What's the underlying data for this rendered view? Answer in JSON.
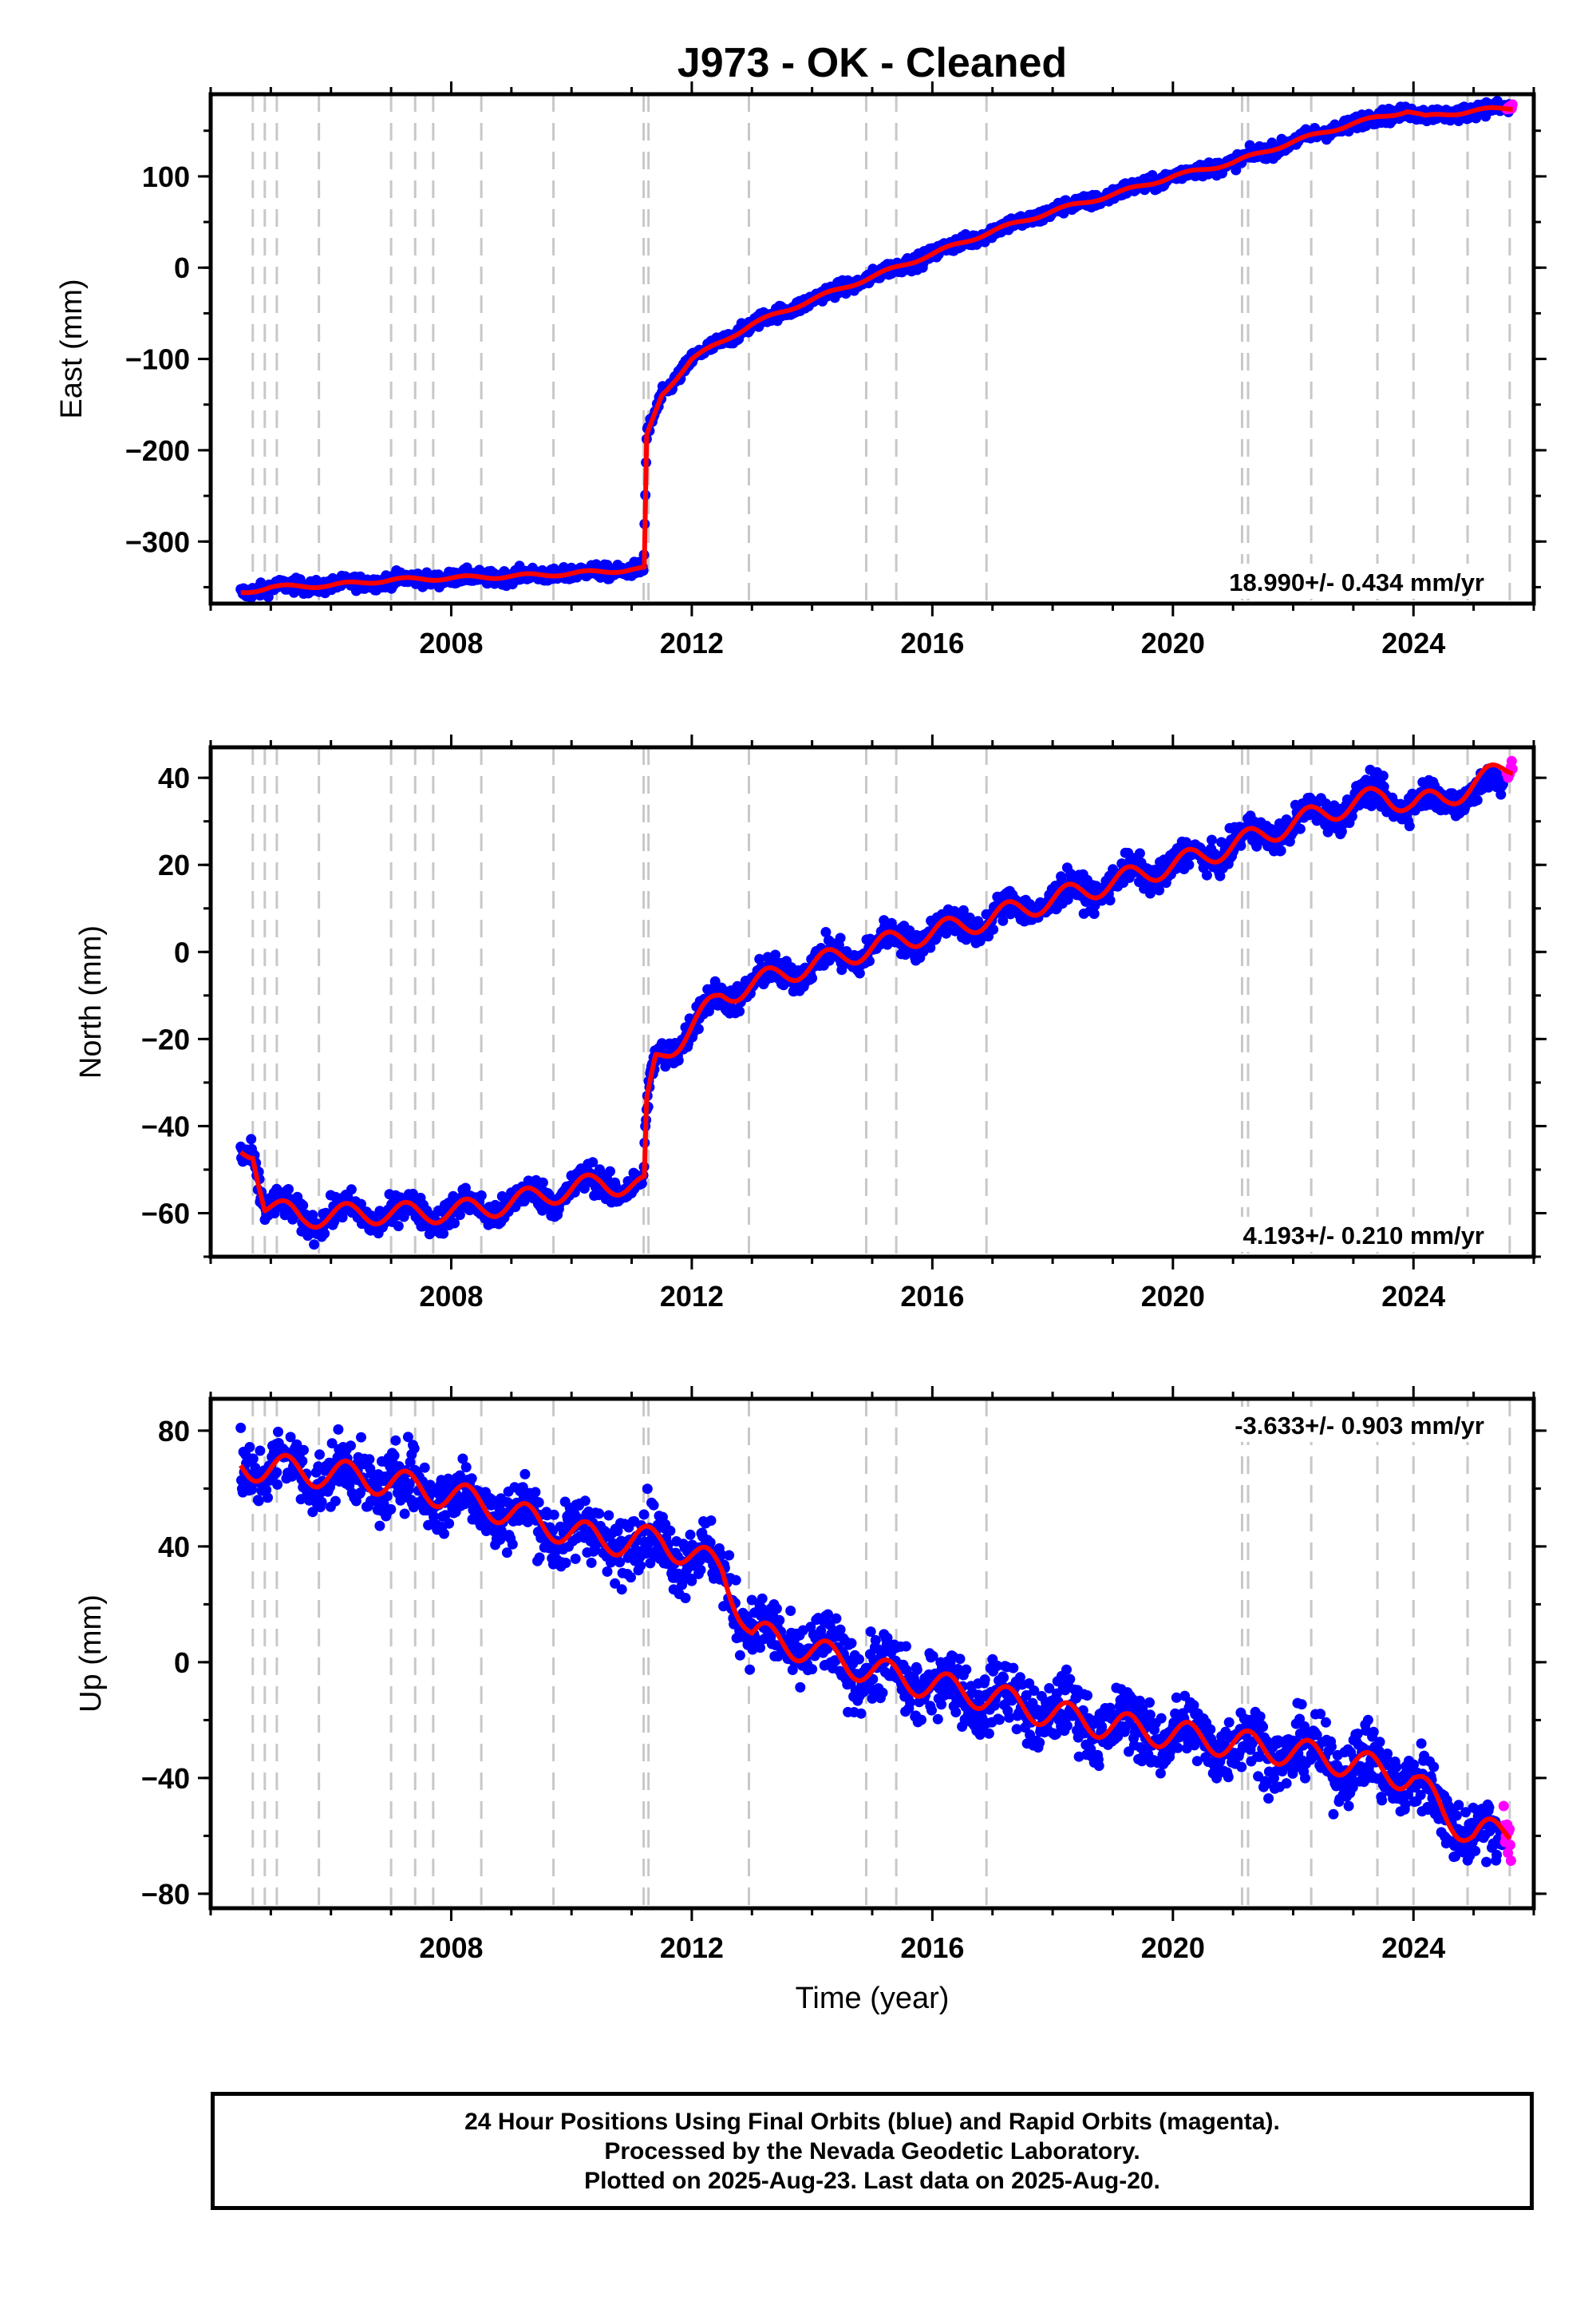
{
  "title": "J973  - OK - Cleaned",
  "xlabel": "Time (year)",
  "colors": {
    "final": "#0000ff",
    "rapid": "#ff00ff",
    "model": "#ff0000",
    "events": "#c8c8c8"
  },
  "event_years": [
    2004.7,
    2004.9,
    2005.1,
    2005.8,
    2007.0,
    2007.4,
    2007.7,
    2008.5,
    2009.7,
    2011.2,
    2011.28,
    2012.95,
    2014.9,
    2015.4,
    2016.9,
    2021.15,
    2021.25,
    2022.3,
    2023.4,
    2024.0,
    2024.9,
    2025.6
  ],
  "footer": {
    "line1": "24 Hour Positions Using Final Orbits (blue) and Rapid Orbits (magenta).",
    "line2": "Processed by the Nevada Geodetic Laboratory.",
    "line3": "Plotted on 2025-Aug-23. Last data on 2025-Aug-20."
  },
  "chart_data": [
    {
      "type": "scatter",
      "component": "East",
      "ylabel": "East (mm)",
      "rate_text": "18.990+/- 0.434 mm/yr",
      "xlim": [
        2004.0,
        2026.0
      ],
      "ylim": [
        -368,
        190
      ],
      "xticks": [
        2008,
        2012,
        2016,
        2020,
        2024
      ],
      "yticks": [
        -300,
        -200,
        -100,
        0,
        100
      ],
      "series": [
        {
          "name": "Final Orbits",
          "x": [
            2004.5,
            2005.0,
            2006.0,
            2007.0,
            2008.0,
            2009.0,
            2010.0,
            2011.2,
            2011.25,
            2011.5,
            2012.0,
            2013.0,
            2014.0,
            2015.0,
            2016.0,
            2017.0,
            2018.0,
            2019.0,
            2020.0,
            2021.0,
            2022.0,
            2023.0,
            2023.9,
            2024.2,
            2025.0,
            2025.6
          ],
          "y": [
            -356,
            -350,
            -348,
            -342,
            -340,
            -338,
            -335,
            -330,
            -185,
            -140,
            -100,
            -62,
            -35,
            -10,
            15,
            40,
            62,
            80,
            100,
            115,
            138,
            158,
            172,
            165,
            172,
            175
          ],
          "noise": 4
        },
        {
          "name": "Rapid Orbits",
          "x": [
            2025.55,
            2025.65
          ],
          "y": [
            174,
            178
          ],
          "noise": 2
        }
      ],
      "model": {
        "x": [
          2004.5,
          2005.0,
          2006.0,
          2007.0,
          2008.0,
          2009.0,
          2010.0,
          2011.2,
          2011.21,
          2011.25,
          2011.5,
          2012.0,
          2013.0,
          2014.0,
          2015.0,
          2016.0,
          2017.0,
          2018.0,
          2019.0,
          2020.0,
          2021.0,
          2022.0,
          2023.0,
          2023.9,
          2024.2,
          2025.0,
          2025.65
        ],
        "y": [
          -356,
          -350,
          -348,
          -342,
          -340,
          -338,
          -335,
          -330,
          -330,
          -185,
          -140,
          -100,
          -62,
          -35,
          -10,
          15,
          40,
          62,
          80,
          100,
          115,
          138,
          158,
          172,
          165,
          172,
          175
        ],
        "seasonal": 2
      }
    },
    {
      "type": "scatter",
      "component": "North",
      "ylabel": "North (mm)",
      "rate_text": "4.193+/- 0.210 mm/yr",
      "xlim": [
        2004.0,
        2026.0
      ],
      "ylim": [
        -70,
        47
      ],
      "xticks": [
        2008,
        2012,
        2016,
        2020,
        2024
      ],
      "yticks": [
        -60,
        -40,
        -20,
        0,
        20,
        40
      ],
      "series": [
        {
          "name": "Final Orbits",
          "x": [
            2004.5,
            2004.7,
            2004.9,
            2005.5,
            2006.5,
            2007.5,
            2008.5,
            2009.5,
            2010.5,
            2011.2,
            2011.25,
            2011.4,
            2011.8,
            2012.5,
            2013.5,
            2014.5,
            2015.5,
            2016.5,
            2017.5,
            2018.5,
            2019.5,
            2020.5,
            2021.5,
            2022.5,
            2023.5,
            2024.0,
            2024.5,
            2025.5
          ],
          "y": [
            -46,
            -45,
            -58,
            -61,
            -60,
            -60,
            -59,
            -56,
            -53,
            -54,
            -36,
            -25,
            -20,
            -10,
            -5,
            -1,
            3,
            6,
            10,
            14,
            18,
            22,
            27,
            32,
            36,
            34,
            35,
            39
          ],
          "noise": 1.8
        },
        {
          "name": "Rapid Orbits",
          "x": [
            2025.55,
            2025.65
          ],
          "y": [
            42,
            44
          ],
          "noise": 1
        }
      ],
      "model": {
        "x": [
          2004.5,
          2004.7,
          2004.9,
          2005.5,
          2006.5,
          2007.5,
          2008.5,
          2009.5,
          2010.5,
          2011.2,
          2011.21,
          2011.25,
          2011.4,
          2011.8,
          2012.5,
          2013.5,
          2014.5,
          2015.5,
          2016.5,
          2017.5,
          2018.5,
          2019.5,
          2020.5,
          2021.5,
          2022.5,
          2023.5,
          2024.0,
          2024.5,
          2025.65
        ],
        "y": [
          -46,
          -45,
          -58,
          -61,
          -60,
          -60,
          -59,
          -56,
          -53,
          -54,
          -54,
          -36,
          -25,
          -20,
          -10,
          -5,
          -1,
          3,
          6,
          10,
          14,
          18,
          22,
          27,
          32,
          36,
          34,
          35,
          43
        ],
        "seasonal": 2.5
      }
    },
    {
      "type": "scatter",
      "component": "Up",
      "ylabel": "Up (mm)",
      "rate_text": "-3.633+/- 0.903 mm/yr",
      "xlim": [
        2004.0,
        2026.0
      ],
      "ylim": [
        -85,
        91
      ],
      "xticks": [
        2008,
        2012,
        2016,
        2020,
        2024
      ],
      "yticks": [
        -80,
        -40,
        0,
        40,
        80
      ],
      "series": [
        {
          "name": "Final Orbits",
          "x": [
            2004.5,
            2005.5,
            2006.5,
            2007.5,
            2008.5,
            2009.5,
            2010.5,
            2011.5,
            2012.5,
            2013.0,
            2014.0,
            2015.0,
            2016.0,
            2017.0,
            2018.0,
            2019.0,
            2020.0,
            2021.0,
            2022.0,
            2023.0,
            2024.0,
            2024.5,
            2025.0,
            2025.5
          ],
          "y": [
            68,
            66,
            64,
            60,
            55,
            48,
            42,
            42,
            32,
            10,
            4,
            -3,
            -8,
            -12,
            -18,
            -22,
            -25,
            -28,
            -31,
            -35,
            -40,
            -52,
            -58,
            -62
          ],
          "noise": 6
        },
        {
          "name": "Rapid Orbits",
          "x": [
            2025.5,
            2025.62
          ],
          "y": [
            -55,
            -65
          ],
          "noise": 4
        }
      ],
      "model": {
        "x": [
          2004.5,
          2005.5,
          2006.5,
          2007.5,
          2008.5,
          2009.5,
          2010.5,
          2011.5,
          2012.5,
          2013.0,
          2014.0,
          2015.0,
          2016.0,
          2017.0,
          2018.0,
          2019.0,
          2020.0,
          2021.0,
          2022.0,
          2023.0,
          2024.0,
          2024.5,
          2025.0,
          2025.6
        ],
        "y": [
          68,
          66,
          64,
          60,
          55,
          48,
          42,
          42,
          32,
          10,
          4,
          -3,
          -8,
          -12,
          -18,
          -22,
          -25,
          -28,
          -31,
          -35,
          -40,
          -52,
          -60,
          -58
        ],
        "seasonal": 5
      }
    }
  ]
}
